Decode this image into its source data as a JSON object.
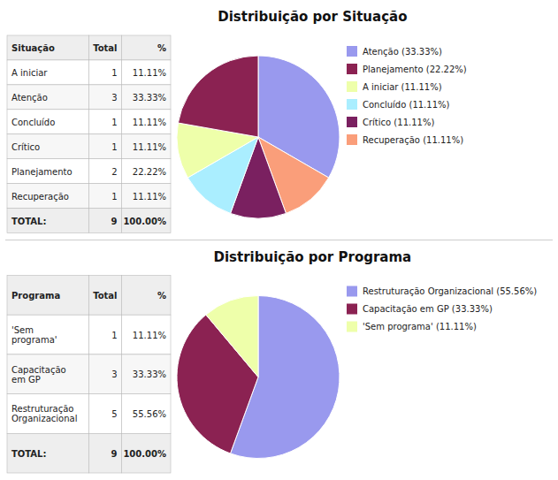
{
  "chart_data": [
    {
      "type": "table",
      "header": [
        "Situação",
        "Total",
        "%"
      ],
      "rows": [
        [
          "A iniciar",
          "1",
          "11.11%"
        ],
        [
          "Atenção",
          "3",
          "33.33%"
        ],
        [
          "Concluído",
          "1",
          "11.11%"
        ],
        [
          "Crítico",
          "1",
          "11.11%"
        ],
        [
          "Planejamento",
          "2",
          "22.22%"
        ],
        [
          "Recuperação",
          "1",
          "11.11%"
        ]
      ],
      "total": [
        "TOTAL:",
        "9",
        "100.00%"
      ]
    },
    {
      "type": "pie",
      "title": "Distribuição por Situação",
      "values": [
        33.33,
        11.11,
        11.11,
        11.11,
        11.11,
        22.22
      ],
      "colors": [
        "#9999ee",
        "#fa9e7a",
        "#7a2060",
        "#aaeeff",
        "#eeffaa",
        "#8b2252"
      ],
      "legend_labels": [
        "Atenção (33.33%)",
        "Planejamento (22.22%)",
        "A iniciar (11.11%)",
        "Concluído (11.11%)",
        "Crítico (11.11%)",
        "Recuperação (11.11%)"
      ],
      "legend_colors": [
        "#9999ee",
        "#8b2252",
        "#eeffaa",
        "#aaeeff",
        "#7a2060",
        "#fa9e7a"
      ]
    },
    {
      "type": "table",
      "header": [
        "Programa",
        "Total",
        "%"
      ],
      "rows": [
        [
          "'Sem\nprograma'",
          "1",
          "11.11%"
        ],
        [
          "Capacitação\nem GP",
          "3",
          "33.33%"
        ],
        [
          "Restruturação\nOrganizacional",
          "5",
          "55.56%"
        ]
      ],
      "total": [
        "TOTAL:",
        "9",
        "100.00%"
      ]
    },
    {
      "type": "pie",
      "title": "Distribuição por Programa",
      "values": [
        55.56,
        33.33,
        11.11
      ],
      "colors": [
        "#9999ee",
        "#8b2252",
        "#eeffaa"
      ],
      "legend_labels": [
        "Restruturação Organizacional (55.56%)",
        "Capacitação em GP (33.33%)",
        "'Sem programa' (11.11%)"
      ],
      "legend_colors": [
        "#9999ee",
        "#8b2252",
        "#eeffaa"
      ]
    }
  ]
}
